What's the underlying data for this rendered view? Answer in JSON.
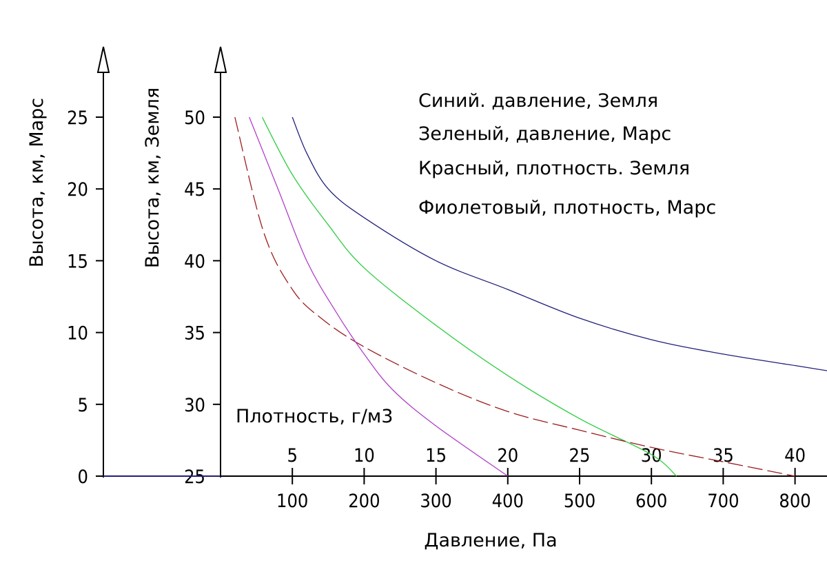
{
  "chart_data": {
    "type": "line",
    "legend": [
      "Синий. давление, Земля",
      "Зеленый, давление, Марс",
      "Красный, плотность. Земля",
      "Фиолетовый, плотность, Марс"
    ],
    "legend_position": "top-right",
    "grid": false,
    "y_axes": {
      "mars": {
        "label": "Высота, км, Марс",
        "ticks": [
          "0",
          "5",
          "10",
          "15",
          "20",
          "25"
        ],
        "range": [
          0,
          25
        ]
      },
      "earth": {
        "label": "Высота, км, Земля",
        "ticks": [
          "25",
          "30",
          "35",
          "40",
          "45",
          "50"
        ],
        "range": [
          25,
          50
        ]
      }
    },
    "x_axes": {
      "pressure": {
        "label": "Давление, Па",
        "ticks": [
          "100",
          "200",
          "300",
          "400",
          "500",
          "600",
          "700",
          "800"
        ],
        "range": [
          0,
          800
        ]
      },
      "density": {
        "label": "Плотность, г/м3",
        "ticks": [
          "5",
          "10",
          "15",
          "20",
          "25",
          "30",
          "35",
          "40"
        ],
        "range": [
          0,
          40
        ]
      }
    },
    "series": [
      {
        "color": "#1f1f7a",
        "dash": "solid",
        "x_axis": "pressure",
        "y_axis": "earth",
        "points": [
          [
            100,
            50
          ],
          [
            120,
            47.5
          ],
          [
            150,
            45
          ],
          [
            200,
            43
          ],
          [
            300,
            40
          ],
          [
            400,
            38
          ],
          [
            500,
            36
          ],
          [
            600,
            34.5
          ],
          [
            700,
            33.5
          ],
          [
            800,
            32.7
          ],
          [
            850,
            32.3
          ]
        ]
      },
      {
        "color": "#2ecc40",
        "dash": "solid",
        "x_axis": "pressure",
        "y_axis": "mars",
        "points": [
          [
            58,
            25
          ],
          [
            100,
            21
          ],
          [
            150,
            17.5
          ],
          [
            200,
            14.5
          ],
          [
            300,
            10.5
          ],
          [
            400,
            7
          ],
          [
            500,
            4
          ],
          [
            600,
            1.5
          ],
          [
            635,
            0
          ]
        ]
      },
      {
        "color": "#9b1c1c",
        "dash": "dashed",
        "x_axis": "density",
        "y_axis": "earth",
        "points": [
          [
            1,
            50
          ],
          [
            3,
            42
          ],
          [
            5,
            38
          ],
          [
            7,
            36
          ],
          [
            10,
            34
          ],
          [
            15,
            31.5
          ],
          [
            20,
            29.5
          ],
          [
            25,
            28.2
          ],
          [
            30,
            27
          ],
          [
            35,
            26
          ],
          [
            40,
            25
          ]
        ]
      },
      {
        "color": "#b040c8",
        "dash": "solid",
        "x_axis": "density",
        "y_axis": "mars",
        "points": [
          [
            2,
            25
          ],
          [
            4,
            20
          ],
          [
            6,
            15
          ],
          [
            8,
            11.5
          ],
          [
            10,
            8.5
          ],
          [
            12,
            6
          ],
          [
            15,
            3.5
          ],
          [
            20,
            0
          ]
        ]
      }
    ]
  }
}
